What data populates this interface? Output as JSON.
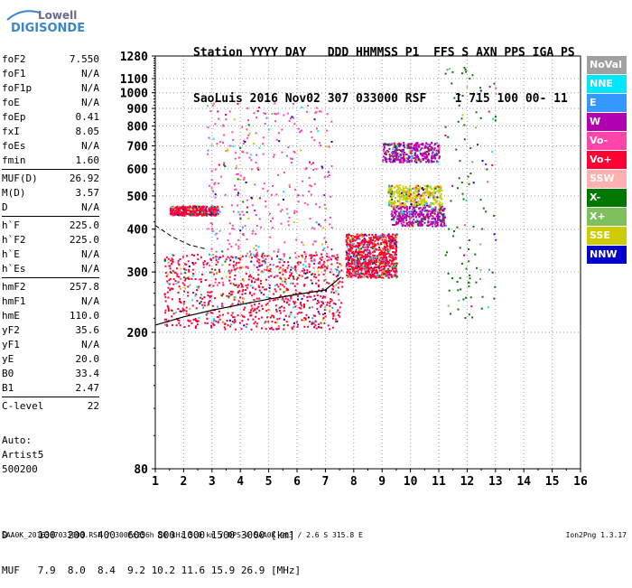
{
  "logo": {
    "line1": "Lowell",
    "line2": "DIGISONDE"
  },
  "header": {
    "line1": "Station YYYY DAY   DDD HHMMSS P1  FFS S AXN PPS IGA PS",
    "line2": "SaoLuis 2016 Nov02 307 033000 RSF    1 715 100 00- 11"
  },
  "params": [
    {
      "name": "foF2",
      "value": "7.550"
    },
    {
      "name": "foF1",
      "value": "N/A"
    },
    {
      "name": "foF1p",
      "value": "N/A"
    },
    {
      "name": "foE",
      "value": "N/A"
    },
    {
      "name": "foEp",
      "value": "0.41"
    },
    {
      "name": "fxI",
      "value": "8.05"
    },
    {
      "name": "foEs",
      "value": "N/A"
    },
    {
      "name": "fmin",
      "value": "1.60"
    },
    {
      "name": "MUF(D)",
      "value": "26.92"
    },
    {
      "name": "M(D)",
      "value": "3.57"
    },
    {
      "name": "D",
      "value": "N/A"
    },
    {
      "name": "h`F",
      "value": "225.0"
    },
    {
      "name": "h`F2",
      "value": "225.0"
    },
    {
      "name": "h`E",
      "value": "N/A"
    },
    {
      "name": "h`Es",
      "value": "N/A"
    },
    {
      "name": "hmF2",
      "value": "257.8"
    },
    {
      "name": "hmF1",
      "value": "N/A"
    },
    {
      "name": "hmE",
      "value": "110.0"
    },
    {
      "name": "yF2",
      "value": "35.6"
    },
    {
      "name": "yF1",
      "value": "N/A"
    },
    {
      "name": "yE",
      "value": "20.0"
    },
    {
      "name": "B0",
      "value": "33.4"
    },
    {
      "name": "B1",
      "value": "2.47"
    },
    {
      "name": "C-level",
      "value": "22"
    }
  ],
  "auto": {
    "line1": "Auto:",
    "line2": "Artist5",
    "line3": "500200"
  },
  "dmuf": {
    "line1": "D     100  200  400  600  800 1000 1500 3000 [km]",
    "line2": "MUF   7.9  8.0  8.4  9.2 10.2 11.6 15.9 26.9 [MHz]"
  },
  "footer": {
    "text": "SAA0K_2016307033000.RSF / 300fx256h 50 kHz 5.0 km / DPS-4 SAA0K 903 / 2.6 S 315.8 E",
    "version": "Ion2Png 1.3.17"
  },
  "legend": [
    {
      "label": "NoVal",
      "color": "#a0a0a0"
    },
    {
      "label": "NNE",
      "color": "#00e6ff"
    },
    {
      "label": "E",
      "color": "#3399ff"
    },
    {
      "label": "W",
      "color": "#b000b0"
    },
    {
      "label": "Vo-",
      "color": "#ff44aa"
    },
    {
      "label": "Vo+",
      "color": "#ff0033"
    },
    {
      "label": "SSW",
      "color": "#ffb0b0"
    },
    {
      "label": "X-",
      "color": "#007700"
    },
    {
      "label": "X+",
      "color": "#7fbf5f"
    },
    {
      "label": "SSE",
      "color": "#cccc00"
    },
    {
      "label": "NNW",
      "color": "#0000cc"
    }
  ],
  "chart_data": {
    "type": "scatter",
    "title": "",
    "xlabel": "",
    "ylabel": "",
    "xlim": [
      1,
      16
    ],
    "ylim": [
      80,
      1280
    ],
    "yscale": "log",
    "xticks": [
      1,
      2,
      3,
      4,
      5,
      6,
      7,
      8,
      9,
      10,
      11,
      12,
      13,
      14,
      15,
      16
    ],
    "yticks": [
      80,
      200,
      300,
      400,
      500,
      600,
      700,
      800,
      900,
      1000,
      1100,
      1280
    ],
    "grid": true,
    "legend_position": "right",
    "profile_curve": [
      [
        1.0,
        210
      ],
      [
        2.0,
        222
      ],
      [
        3.0,
        232
      ],
      [
        4.0,
        241
      ],
      [
        5.0,
        250
      ],
      [
        6.0,
        258
      ],
      [
        7.0,
        266
      ],
      [
        7.55,
        290
      ]
    ],
    "dashed_curve": [
      [
        1.0,
        410
      ],
      [
        1.6,
        380
      ],
      [
        2.2,
        360
      ],
      [
        2.8,
        350
      ]
    ],
    "echo_clusters": [
      {
        "x": [
          1.3,
          7.6
        ],
        "y": [
          205,
          340
        ],
        "color": "Vo+",
        "density": "high"
      },
      {
        "x": [
          1.5,
          3.2
        ],
        "y": [
          440,
          470
        ],
        "color": "Vo+",
        "density": "medium"
      },
      {
        "x": [
          2.8,
          7.2
        ],
        "y": [
          300,
          950
        ],
        "color": "Vo-",
        "density": "medium"
      },
      {
        "x": [
          7.7,
          9.5
        ],
        "y": [
          290,
          390
        ],
        "color": "Vo+",
        "density": "high"
      },
      {
        "x": [
          9.0,
          11.0
        ],
        "y": [
          630,
          720
        ],
        "color": "W",
        "density": "medium"
      },
      {
        "x": [
          9.3,
          11.2
        ],
        "y": [
          410,
          470
        ],
        "color": "W",
        "density": "medium"
      },
      {
        "x": [
          9.2,
          11.1
        ],
        "y": [
          470,
          540
        ],
        "color": "SSE",
        "density": "medium"
      },
      {
        "x": [
          11.2,
          13.0
        ],
        "y": [
          200,
          1200
        ],
        "color": "X-",
        "density": "low"
      }
    ]
  }
}
